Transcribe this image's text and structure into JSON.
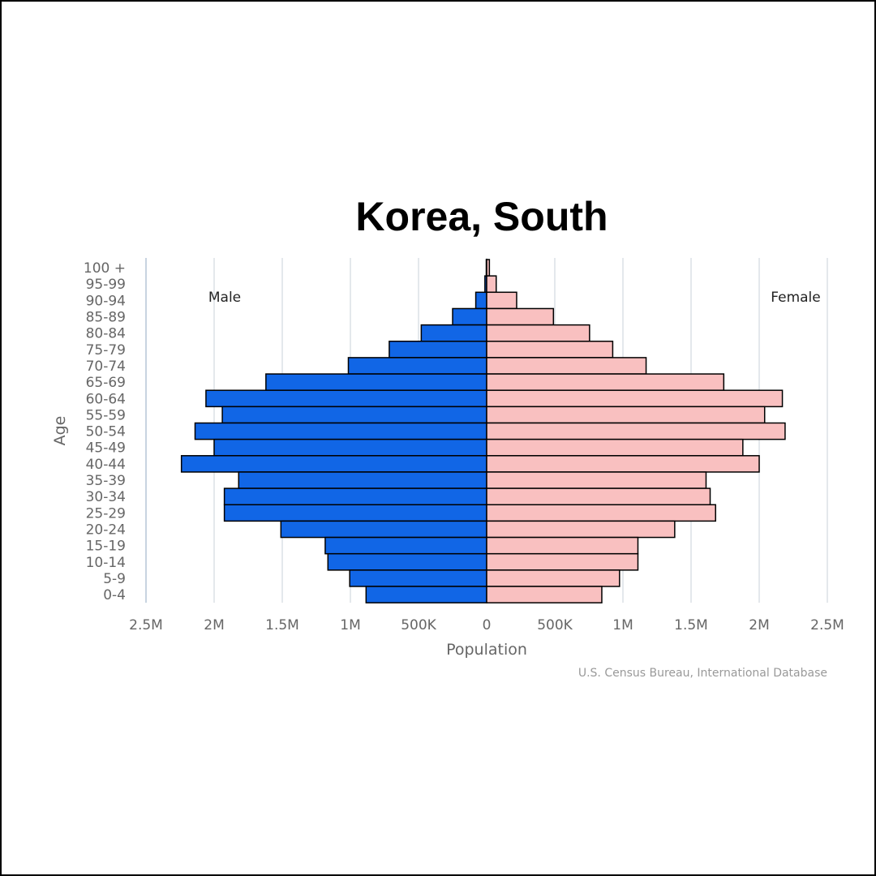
{
  "chart_data": {
    "type": "bar",
    "orientation": "horizontal-pyramid",
    "title": "Korea, South",
    "xlabel": "Population",
    "ylabel": "Age",
    "credit": "U.S. Census Bureau, International Database",
    "side_labels": {
      "left": "Male",
      "right": "Female"
    },
    "xlim": [
      -2500000,
      2500000
    ],
    "x_ticks": [
      {
        "value": -2500000,
        "label": "2.5M"
      },
      {
        "value": -2000000,
        "label": "2M"
      },
      {
        "value": -1500000,
        "label": "1.5M"
      },
      {
        "value": -1000000,
        "label": "1M"
      },
      {
        "value": -500000,
        "label": "500K"
      },
      {
        "value": 0,
        "label": "0"
      },
      {
        "value": 500000,
        "label": "500K"
      },
      {
        "value": 1000000,
        "label": "1M"
      },
      {
        "value": 1500000,
        "label": "1.5M"
      },
      {
        "value": 2000000,
        "label": "2M"
      },
      {
        "value": 2500000,
        "label": "2.5M"
      }
    ],
    "grid": true,
    "categories": [
      "100 +",
      "95-99",
      "90-94",
      "85-89",
      "80-84",
      "75-79",
      "70-74",
      "65-69",
      "60-64",
      "55-59",
      "50-54",
      "45-49",
      "40-44",
      "35-39",
      "30-34",
      "25-29",
      "20-24",
      "15-19",
      "10-14",
      "5-9",
      "0-4"
    ],
    "series": [
      {
        "name": "Male",
        "color": "#1166e6",
        "values": [
          3000,
          13000,
          80000,
          250000,
          480000,
          715000,
          1015000,
          1620000,
          2060000,
          1940000,
          2140000,
          2000000,
          2240000,
          1820000,
          1925000,
          1925000,
          1510000,
          1185000,
          1165000,
          1005000,
          885000
        ]
      },
      {
        "name": "Female",
        "color": "#f9c0c0",
        "values": [
          20000,
          70000,
          220000,
          490000,
          755000,
          925000,
          1170000,
          1740000,
          2170000,
          2040000,
          2190000,
          1880000,
          2000000,
          1610000,
          1640000,
          1680000,
          1380000,
          1110000,
          1110000,
          975000,
          845000
        ]
      }
    ]
  }
}
